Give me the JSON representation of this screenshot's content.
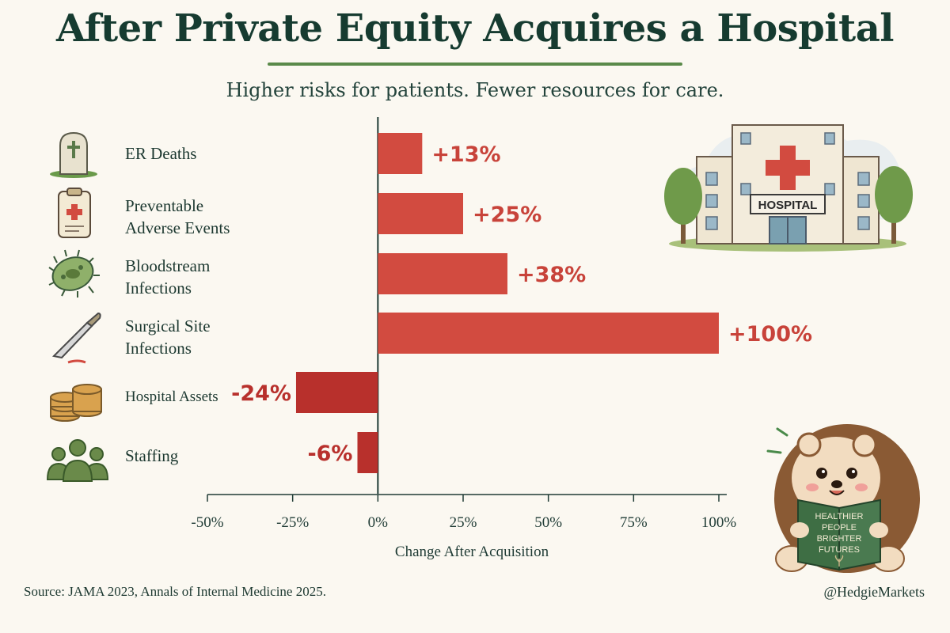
{
  "header": {
    "title": "After Private Equity Acquires a Hospital",
    "subtitle": "Higher risks for patients. Fewer resources for care."
  },
  "rows": [
    {
      "label": "ER Deaths",
      "icon": "gravestone-icon"
    },
    {
      "label": "Preventable\nAdverse Events",
      "icon": "clipboard-medical-icon"
    },
    {
      "label": "Bloodstream\nInfections",
      "icon": "bacteria-icon"
    },
    {
      "label": "Surgical Site\nInfections",
      "icon": "scalpel-icon"
    },
    {
      "label": "Hospital Assets",
      "icon": "coin-stack-icon"
    },
    {
      "label": "Staffing",
      "icon": "people-icon"
    }
  ],
  "chart_data": {
    "type": "bar",
    "orientation": "horizontal",
    "categories": [
      "ER Deaths",
      "Preventable Adverse Events",
      "Bloodstream Infections",
      "Surgical Site Infections",
      "Hospital Assets",
      "Staffing"
    ],
    "values": [
      13,
      25,
      38,
      100,
      -24,
      -6
    ],
    "value_labels": [
      "+13%",
      "+25%",
      "+38%",
      "+100%",
      "-24%",
      "-6%"
    ],
    "xlabel": "Change After Acquisition",
    "xticks": [
      "-50%",
      "-25%",
      "0%",
      "25%",
      "50%",
      "75%",
      "100%"
    ],
    "xtick_values": [
      -50,
      -25,
      0,
      25,
      50,
      75,
      100
    ],
    "xlim": [
      -50,
      100
    ],
    "colors": {
      "positive": "#d24b40",
      "negative": "#b8302c",
      "label_positive": "#c8433a",
      "label_negative": "#b8302c"
    }
  },
  "illustrations": {
    "hospital_sign": "HOSPITAL",
    "book_text": [
      "HEALTHIER",
      "PEOPLE",
      "BRIGHTER",
      "FUTURES"
    ]
  },
  "footer": {
    "source": "Source: JAMA 2023, Annals of Internal Medicine 2025.",
    "handle": "@HedgieMarkets"
  }
}
